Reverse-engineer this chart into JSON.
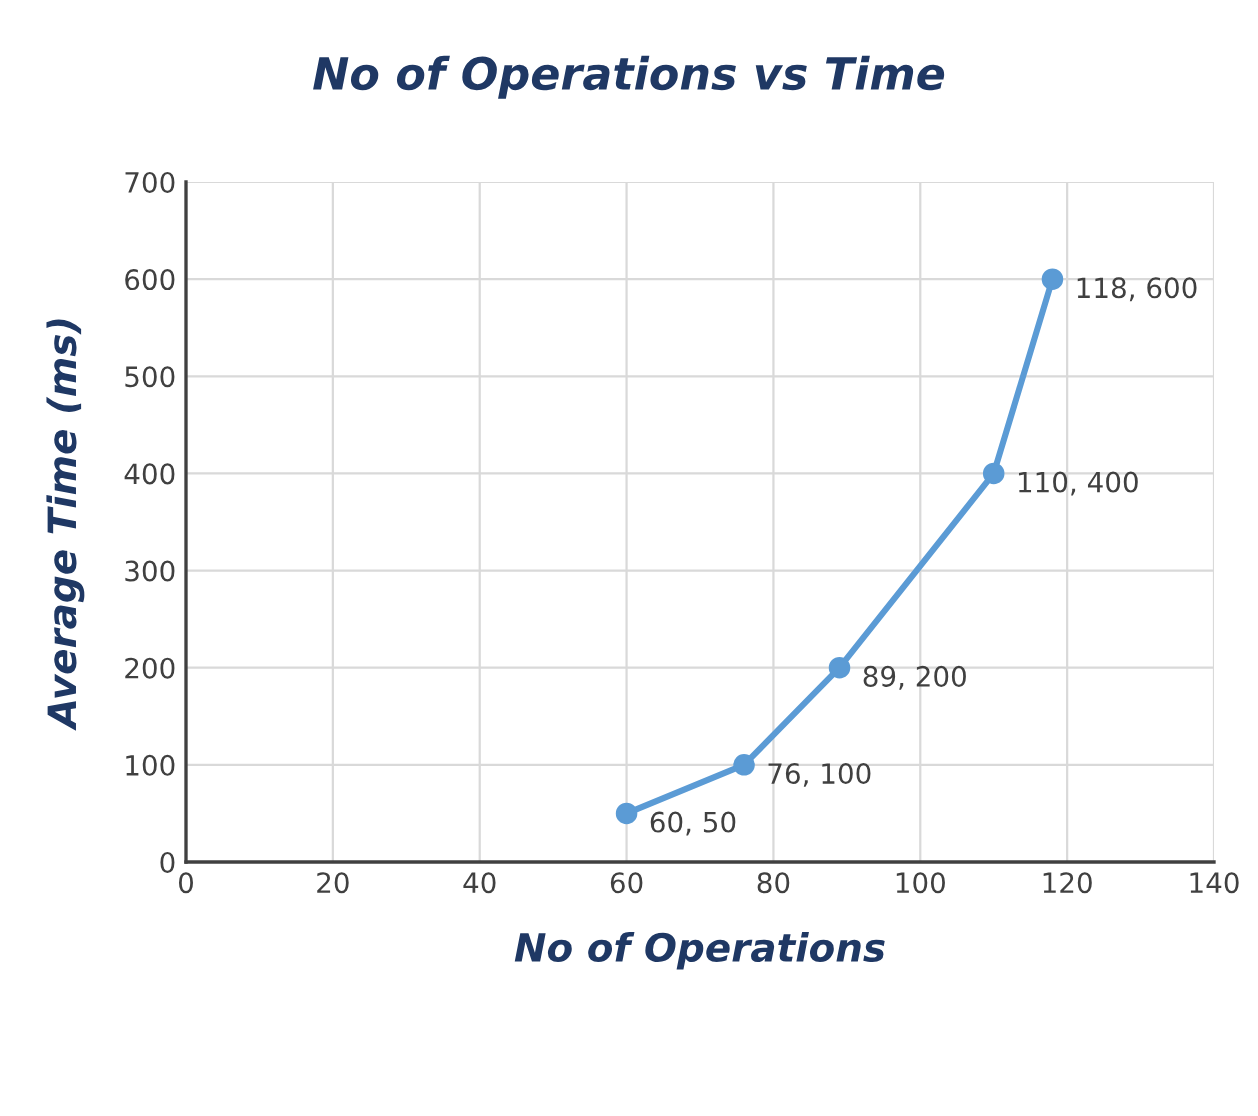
{
  "chart_data": {
    "type": "line",
    "title": "No of Operations vs Time",
    "xlabel": "No of Operations",
    "ylabel": "Average Time (ms)",
    "x": [
      60,
      76,
      89,
      110,
      118
    ],
    "series": [
      {
        "color": "#5b9bd5",
        "values": [
          50,
          100,
          200,
          400,
          600
        ],
        "value_labels": [
          "60, 50",
          "76, 100",
          "89, 200",
          "110, 400",
          "118, 600"
        ]
      }
    ],
    "xlim": [
      0,
      140
    ],
    "xticks": [
      0,
      20,
      40,
      60,
      80,
      100,
      120,
      140
    ],
    "ylim": [
      0,
      700
    ],
    "yticks": [
      0,
      100,
      200,
      300,
      400,
      500,
      600,
      700
    ],
    "grid": true,
    "legend": false,
    "marker": "circle",
    "line_style": "solid"
  }
}
